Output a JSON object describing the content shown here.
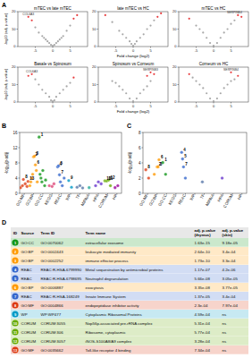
{
  "panel_labels": [
    "A",
    "B",
    "C",
    "D"
  ],
  "chart_data": [
    {
      "type": "scatter",
      "title": "mTEC vs late mTEC",
      "ylabel": "-log10 (adj. p-value)",
      "xlim": [
        -10,
        10
      ],
      "ylim": [
        0,
        20
      ],
      "xticks": [
        -5,
        0,
        5
      ],
      "yticks": [
        0,
        10,
        20
      ],
      "series": [
        {
          "color": "#999999",
          "x": [
            -5,
            -4,
            -3,
            -2.5,
            -2,
            -1.5,
            -1,
            -0.5,
            0,
            0.5,
            1,
            1.5,
            2,
            2.5,
            3,
            4,
            5
          ],
          "values": [
            11,
            8,
            6,
            5,
            4,
            3,
            2,
            1,
            0.5,
            1,
            2,
            3,
            4,
            5,
            6,
            9,
            12
          ]
        },
        {
          "color": "#e41a1c",
          "x": [
            -7,
            -6,
            6,
            7
          ],
          "values": [
            17,
            15,
            16,
            18
          ]
        }
      ],
      "annotations": [
        {
          "text": "COL6A3",
          "x": -7,
          "y": 17
        }
      ]
    },
    {
      "type": "scatter",
      "title": "late mTEC vs HC",
      "xlabel": "Fold change (log2)",
      "xlim": [
        -10,
        10
      ],
      "ylim": [
        0,
        20
      ],
      "xticks": [
        -5,
        0,
        5
      ],
      "yticks": [
        0,
        10,
        20
      ],
      "series": [
        {
          "color": "#999999",
          "x": [
            -6,
            -4,
            -3,
            -2,
            -1,
            -0.5,
            0,
            0.5,
            1,
            2,
            3,
            4,
            5,
            6
          ],
          "values": [
            14,
            9,
            7,
            5,
            3,
            1.5,
            0.5,
            1.5,
            3,
            5,
            7,
            10,
            12,
            15
          ]
        },
        {
          "color": "#e41a1c",
          "x": [
            -8,
            7,
            8
          ],
          "values": [
            18,
            17,
            19
          ]
        }
      ]
    },
    {
      "type": "scatter",
      "title": "mTEC vs HC",
      "xlim": [
        -10,
        10
      ],
      "ylim": [
        0,
        20
      ],
      "xticks": [
        -5,
        0,
        5
      ],
      "yticks": [
        0,
        10,
        20
      ],
      "series": [
        {
          "color": "#999999",
          "x": [
            -5,
            -4,
            -3,
            -2,
            -1,
            0,
            1,
            2,
            3,
            4,
            5,
            6
          ],
          "values": [
            12,
            10,
            8,
            5,
            2,
            0.5,
            2,
            5,
            8,
            10,
            13,
            15
          ]
        },
        {
          "color": "#e41a1c",
          "x": [
            -7,
            7,
            8
          ],
          "values": [
            16,
            18,
            17
          ]
        }
      ],
      "annotations": [
        {
          "text": "SERPINB4",
          "x": 6,
          "y": 18
        }
      ]
    },
    {
      "type": "scatter",
      "title": "Basale vs Spinosum",
      "ylabel": "-log10 (adj. p-value)",
      "xlim": [
        -10,
        10
      ],
      "ylim": [
        0,
        20
      ],
      "xticks": [
        -5,
        0,
        5
      ],
      "yticks": [
        0,
        10,
        20
      ],
      "series": [
        {
          "color": "#999999",
          "x": [
            -5,
            -4,
            -3,
            -2,
            -1,
            -0.5,
            0,
            0.5,
            1,
            2,
            3,
            4,
            5
          ],
          "values": [
            13,
            10,
            7,
            5,
            3,
            1,
            0.5,
            1,
            3,
            5,
            7,
            9,
            11
          ]
        },
        {
          "color": "#e41a1c",
          "x": [
            -6,
            -7,
            6
          ],
          "values": [
            16,
            15,
            14
          ]
        }
      ],
      "annotations": [
        {
          "text": "COL6A3",
          "x": -6,
          "y": 16
        }
      ]
    },
    {
      "type": "scatter",
      "title": "Spinosum vs Corneum",
      "xlabel": "Fold change (log2)",
      "xlim": [
        -10,
        10
      ],
      "ylim": [
        0,
        20
      ],
      "xticks": [
        -5,
        0,
        5
      ],
      "yticks": [
        0,
        10,
        20
      ],
      "series": [
        {
          "color": "#999999",
          "x": [
            -6,
            -5,
            -4,
            -3,
            -2,
            -1,
            0,
            1,
            2,
            3,
            4,
            5
          ],
          "values": [
            12,
            11,
            9,
            7,
            5,
            2,
            0.5,
            2,
            5,
            7,
            9,
            12
          ]
        },
        {
          "color": "#e41a1c",
          "x": [
            4,
            5,
            6
          ],
          "values": [
            15,
            17,
            16
          ]
        }
      ],
      "annotations": [
        {
          "text": "SERPINB3",
          "x": 5,
          "y": 17
        }
      ]
    },
    {
      "type": "scatter",
      "title": "Corneum vs HC",
      "xlim": [
        -10,
        10
      ],
      "ylim": [
        0,
        20
      ],
      "xticks": [
        -5,
        0,
        5
      ],
      "yticks": [
        0,
        10,
        20
      ],
      "series": [
        {
          "color": "#999999",
          "x": [
            -6,
            -5,
            -4,
            -3,
            -2,
            -1,
            0,
            1,
            2,
            3,
            4,
            5,
            6
          ],
          "values": [
            14,
            12,
            10,
            8,
            5,
            2,
            0.5,
            2,
            5,
            8,
            10,
            12,
            13
          ]
        },
        {
          "color": "#e41a1c",
          "x": [
            -7,
            5,
            7
          ],
          "values": [
            16,
            17,
            15
          ]
        }
      ],
      "annotations": [
        {
          "text": "SERPINB4",
          "x": 5,
          "y": 17
        }
      ]
    },
    {
      "type": "scatter",
      "ylabel": "-log₁₀(p-adj)",
      "xlim": [
        0,
        110
      ],
      "ylim": [
        0,
        16
      ],
      "yticks": [
        0,
        4,
        8,
        12,
        16
      ],
      "xticks": [
        {
          "value": 5,
          "label": "GO:MF"
        },
        {
          "value": 15,
          "label": "GO:BP"
        },
        {
          "value": 25,
          "label": "GO:CC"
        },
        {
          "value": 35,
          "label": "KEGG"
        },
        {
          "value": 45,
          "label": "REAC"
        },
        {
          "value": 55,
          "label": "WP"
        },
        {
          "value": 65,
          "label": "TF"
        },
        {
          "value": 75,
          "label": "MIRNA"
        },
        {
          "value": 85,
          "label": "HPA"
        },
        {
          "value": 95,
          "label": "CORUM"
        },
        {
          "value": 105,
          "label": "HP"
        }
      ],
      "series": [
        {
          "color": "#dc3912",
          "x": [
            1,
            3,
            4,
            6,
            8,
            9
          ],
          "values": [
            1.5,
            2,
            3.64,
            2.5,
            1.8,
            3.13
          ]
        },
        {
          "color": "#ff9900",
          "x": [
            11,
            12,
            13,
            14,
            15,
            16,
            17,
            18,
            19
          ],
          "values": [
            2,
            3,
            4,
            5,
            9.58,
            9.76,
            7.48,
            6,
            3
          ]
        },
        {
          "color": "#109618",
          "x": [
            21,
            22,
            23,
            24,
            25,
            27,
            28
          ],
          "values": [
            14.79,
            5,
            4,
            3,
            6,
            2,
            3.5
          ]
        },
        {
          "color": "#dd4477",
          "x": [
            32,
            35,
            37
          ],
          "values": [
            2,
            1.8,
            2.5
          ]
        },
        {
          "color": "#3366cc",
          "x": [
            41,
            42,
            43,
            44,
            46,
            48
          ],
          "values": [
            6.93,
            7.25,
            4.86,
            3,
            2,
            4
          ]
        },
        {
          "color": "#0099c6",
          "x": [
            53,
            56
          ],
          "values": [
            3.34,
            1.6
          ]
        },
        {
          "color": "#5574a6",
          "x": [
            62,
            65,
            68
          ],
          "values": [
            1.6,
            2,
            1.4
          ]
        },
        {
          "color": "#22aa99",
          "x": [
            75
          ],
          "values": [
            1.5
          ]
        },
        {
          "color": "#6633cc",
          "x": [
            82,
            85,
            88
          ],
          "values": [
            2,
            3,
            2.5
          ]
        },
        {
          "color": "#66aa00",
          "x": [
            92,
            94,
            96,
            98
          ],
          "values": [
            3.27,
            3.24,
            3.48,
            2
          ]
        },
        {
          "color": "#990099",
          "x": [
            103,
            106
          ],
          "values": [
            1.5,
            2
          ]
        }
      ],
      "annotations": [
        {
          "text": "1",
          "x": 21,
          "y": 14.79
        },
        {
          "text": "2",
          "x": 15,
          "y": 9.58
        },
        {
          "text": "3",
          "x": 16,
          "y": 9.76
        },
        {
          "text": "4",
          "x": 41,
          "y": 6.93
        },
        {
          "text": "5",
          "x": 42,
          "y": 7.25
        },
        {
          "text": "6",
          "x": 17,
          "y": 7.48
        },
        {
          "text": "7",
          "x": 43,
          "y": 4.86
        },
        {
          "text": "8",
          "x": 4,
          "y": 3.64
        },
        {
          "text": "9",
          "x": 53,
          "y": 3.34
        },
        {
          "text": "10",
          "x": 92,
          "y": 3.27
        },
        {
          "text": "11",
          "x": 94,
          "y": 3.24
        },
        {
          "text": "12",
          "x": 96,
          "y": 3.48
        },
        {
          "text": "13",
          "x": 9,
          "y": 3.13
        }
      ]
    },
    {
      "type": "scatter",
      "ylabel": "-log₁₀(p-adj)",
      "xlim": [
        0,
        110
      ],
      "ylim": [
        0,
        8
      ],
      "yticks": [
        0,
        2,
        4,
        6,
        8
      ],
      "xticks": [
        {
          "value": 5,
          "label": "GO:MF"
        },
        {
          "value": 15,
          "label": "GO:BP"
        },
        {
          "value": 25,
          "label": "GO:CC"
        },
        {
          "value": 35,
          "label": "KEGG"
        },
        {
          "value": 45,
          "label": "REAC"
        },
        {
          "value": 55,
          "label": "WP"
        },
        {
          "value": 65,
          "label": "TF"
        },
        {
          "value": 75,
          "label": "MIRNA"
        },
        {
          "value": 85,
          "label": "HPA"
        },
        {
          "value": 95,
          "label": "CORUM"
        },
        {
          "value": 105,
          "label": "HP"
        }
      ],
      "series": [
        {
          "color": "#dc3912",
          "x": [
            3,
            6
          ],
          "values": [
            3.1,
            2
          ]
        },
        {
          "color": "#ff9900",
          "x": [
            12,
            15,
            16,
            17
          ],
          "values": [
            2.5,
            3.47,
            3.48,
            4.42
          ]
        },
        {
          "color": "#109618",
          "x": [
            21,
            24
          ],
          "values": [
            4.04,
            2.5
          ]
        },
        {
          "color": "#3366cc",
          "x": [
            41,
            42,
            43,
            45
          ],
          "values": [
            5.38,
            4.52,
            3.47,
            2
          ]
        },
        {
          "color": "#5574a6",
          "x": [
            63
          ],
          "values": [
            1.5
          ]
        },
        {
          "color": "#6633cc",
          "x": [
            84
          ],
          "values": [
            2
          ]
        }
      ],
      "annotations": [
        {
          "text": "1",
          "x": 21,
          "y": 4.04
        },
        {
          "text": "2",
          "x": 15,
          "y": 3.47
        },
        {
          "text": "3",
          "x": 16,
          "y": 3.48
        },
        {
          "text": "4",
          "x": 41,
          "y": 5.38
        },
        {
          "text": "5",
          "x": 42,
          "y": 4.52
        },
        {
          "text": "6",
          "x": 17,
          "y": 4.42
        },
        {
          "text": "7",
          "x": 43,
          "y": 3.47
        },
        {
          "text": "8",
          "x": 3,
          "y": 3.1
        }
      ]
    }
  ],
  "table": {
    "header": [
      "ID",
      "Source",
      "Term ID",
      "Term name",
      "adj. p-value (thymus)",
      "adj. p-value (skin)"
    ],
    "colors": [
      "#109618",
      "#ff9900",
      "#ff9900",
      "#3366cc",
      "#3366cc",
      "#ff9900",
      "#3366cc",
      "#dc3912",
      "#0099c6",
      "#66aa00",
      "#66aa00",
      "#66aa00",
      "#dc3912"
    ],
    "rows": [
      [
        "1",
        "GO:CC",
        "GO:0070062",
        "extracellular exosome",
        "1.63e-15",
        "9.18e-05"
      ],
      [
        "2",
        "GO:BP",
        "GO:0002443",
        "leukocyte mediated immunity",
        "2.64e-10",
        "3.4e-04"
      ],
      [
        "3",
        "GO:BP",
        "GO:0002252",
        "immune effector process",
        "1.73e-10",
        "3.3e-04"
      ],
      [
        "4",
        "REAC",
        "REAC:R-HSA-6799990",
        "Metal sequestration by antimicrobial proteins",
        "1.17e-07",
        "4.2e-06"
      ],
      [
        "5",
        "REAC",
        "REAC:R-HSA-6798695",
        "Neutrophil degranulation",
        "5.66e-08",
        "3.05e-05"
      ],
      [
        "6",
        "GO:BP",
        "GO:0006887",
        "exocytosis",
        "3.35e-08",
        "3.77e-05"
      ],
      [
        "7",
        "REAC",
        "REAC:R-HSA-168249",
        "Innate Immune System",
        "1.37e-05",
        "3.4e-04"
      ],
      [
        "8",
        "GO:MF",
        "GO:0004866",
        "endopeptidase inhibitor activity",
        "2.3e-04",
        "7.97e-04"
      ],
      [
        "9",
        "WP",
        "WP:WP477",
        "Cytoplasmic Ribosomal Proteins",
        "4.59e-04",
        "ns"
      ],
      [
        "10",
        "CORUM",
        "CORUM:3055",
        "Nop56p-associated pre-rRNA complex",
        "5.31e-04",
        "ns"
      ],
      [
        "11",
        "CORUM",
        "CORUM:306",
        "Ribosome, cytoplasmic",
        "5.77e-04",
        "ns"
      ],
      [
        "12",
        "CORUM",
        "CORUM:3057",
        "iNOS-S100A8/A9 complex",
        "3.28e-04",
        "ns"
      ],
      [
        "13",
        "GO:MF",
        "GO:0035662",
        "Toll-like receptor 4 binding",
        "7.34e-04",
        "ns"
      ]
    ]
  }
}
